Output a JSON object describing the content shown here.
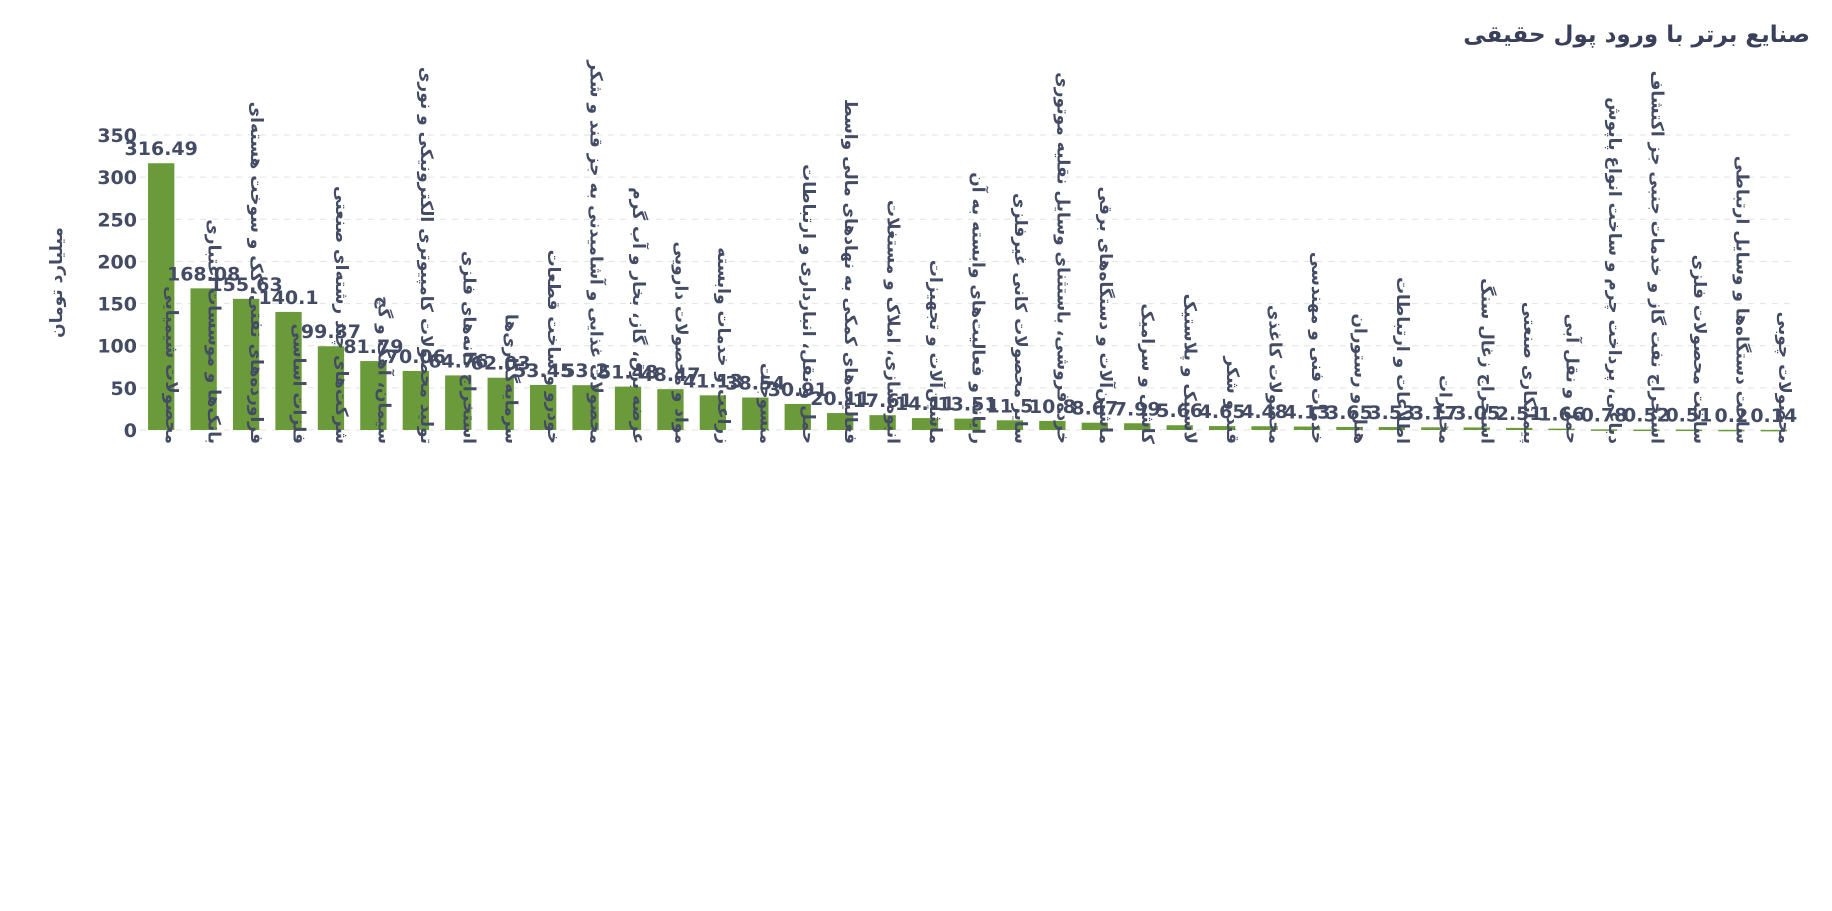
{
  "chart_data": {
    "type": "bar",
    "title": "صنایع برتر با ورود پول حقیقی",
    "ylabel": "میلیارد تومان",
    "xlabel": "",
    "ylim": [
      0,
      350
    ],
    "yticks": [
      0,
      50,
      100,
      150,
      200,
      250,
      300,
      350
    ],
    "grid": true,
    "bar_color": "#6a9a3a",
    "categories": [
      "محصولات شیمیایی",
      "بانک‌ها و موسسات اعتباری",
      "فراورده‌های نفتی، کک و سوخت هسته‌ای",
      "فلزات اساسی",
      "شرکت‌های چند رشته‌ای صنعتی",
      "سیمان، آهک و گچ",
      "تولید محصولات کامپیوتری الکترونیکی و نوری",
      "استخراج کانه‌های فلزی",
      "سرمایه‌گذاری‌ها",
      "خودرو و ساخت قطعات",
      "محصولات غذایی و آشامیدنی به جز قند و شکر",
      "عرضه برق، گاز، بخار و آب گرم",
      "مواد و محصولات دارویی",
      "زراعت و خدمات وابسته",
      "منسوجات",
      "حمل و نقل، انبارداری و ارتباطات",
      "فعالیت‌های کمکی به نهادهای مالی واسط",
      "انبوه‌سازی، املاک و مستغلات",
      "ماشین‌آلات و تجهیزات",
      "رایانه و فعالیت‌های وابسته به آن",
      "سایر محصولات کانی غیرفلزی",
      "خرده‌فروشی، باستثنای وسایل نقلیه موتوری",
      "ماشین‌آلات و دستگاه‌های برقی",
      "کاشی و سرامیک",
      "لاستیک و پلاستیک",
      "قند و شکر",
      "محصولات کاغذی",
      "خدمات فنی و مهندسی",
      "هتل و رستوران",
      "اطلاعات و ارتباطات",
      "مخابرات",
      "استخراج زغال سنگ",
      "پیمانکاری صنعتی",
      "حمل و نقل آبی",
      "دباغی، پرداخت چرم و ساخت انواع پاپوش",
      "استخراج نفت گاز و خدمات جنبی جز اکتشاف",
      "ساخت محصولات فلزی",
      "ساخت دستگاه‌ها و وسایل ارتباطی",
      "محصولات چوبی"
    ],
    "values": [
      316.49,
      168.08,
      155.63,
      140.1,
      99.37,
      81.79,
      70.06,
      64.76,
      62.03,
      53.45,
      53.2,
      51.48,
      48.47,
      41.13,
      38.54,
      30.91,
      20.11,
      17.61,
      14.11,
      13.51,
      11.5,
      10.8,
      8.67,
      7.99,
      5.66,
      4.65,
      4.48,
      4.13,
      3.65,
      3.53,
      3.17,
      3.05,
      2.51,
      1.66,
      0.78,
      0.52,
      0.51,
      0.2,
      0.14
    ],
    "value_labels": [
      "316.49",
      "168.08",
      "155.63",
      "140.1",
      "99.37",
      "81.79",
      "70.06",
      "64.76",
      "62.03",
      "53.45",
      "53.2",
      "51.48",
      "48.47",
      "41.13",
      "38.54",
      "30.91",
      "20.11",
      "17.61",
      "14.11",
      "13.51",
      "11.5",
      "10.8",
      "8.67",
      "7.99",
      "5.66",
      "4.65",
      "4.48",
      "4.13",
      "3.65",
      "3.53",
      "3.17",
      "3.05",
      "2.51",
      "1.66",
      "0.78",
      "0.52",
      "0.51",
      "0.2",
      "0.14"
    ]
  }
}
